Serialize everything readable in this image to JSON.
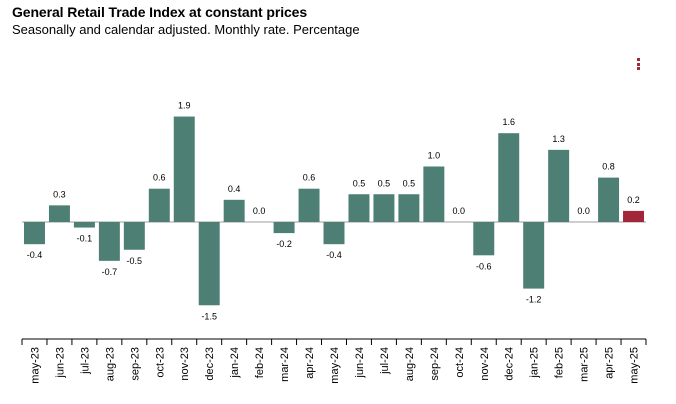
{
  "header": {
    "title": "General Retail Trade Index at constant prices",
    "subtitle": "Seasonally and calendar adjusted. Monthly rate. Percentage"
  },
  "menu": {
    "icon": "kebab-menu-icon"
  },
  "colors": {
    "bar": "#4e7f74",
    "highlight": "#a3253a",
    "axis": "#000000",
    "baseline": "#9e9e9e"
  },
  "chart_data": {
    "type": "bar",
    "title": "General Retail Trade Index at constant prices",
    "subtitle": "Seasonally and calendar adjusted. Monthly rate. Percentage",
    "xlabel": "",
    "ylabel": "",
    "ylim": [
      -1.5,
      1.9
    ],
    "grid": false,
    "highlight_index": 24,
    "categories": [
      "may-23",
      "jun-23",
      "jul-23",
      "aug-23",
      "sep-23",
      "oct-23",
      "nov-23",
      "dec-23",
      "jan-24",
      "feb-24",
      "mar-24",
      "apr-24",
      "may-24",
      "jun-24",
      "jul-24",
      "aug-24",
      "sep-24",
      "oct-24",
      "nov-24",
      "dec-24",
      "jan-25",
      "feb-25",
      "mar-25",
      "apr-25",
      "may-25"
    ],
    "values": [
      -0.4,
      0.3,
      -0.1,
      -0.7,
      -0.5,
      0.6,
      1.9,
      -1.5,
      0.4,
      0.0,
      -0.2,
      0.6,
      -0.4,
      0.5,
      0.5,
      0.5,
      1.0,
      0.0,
      -0.6,
      1.6,
      -1.2,
      1.3,
      0.0,
      0.8,
      0.2
    ],
    "value_labels": [
      "-0.4",
      "0.3",
      "-0.1",
      "-0.7",
      "-0.5",
      "0.6",
      "1.9",
      "-1.5",
      "0.4",
      "0.0",
      "-0.2",
      "0.6",
      "-0.4",
      "0.5",
      "0.5",
      "0.5",
      "1.0",
      "0.0",
      "-0.6",
      "1.6",
      "-1.2",
      "1.3",
      "0.0",
      "0.8",
      "0.2"
    ]
  }
}
